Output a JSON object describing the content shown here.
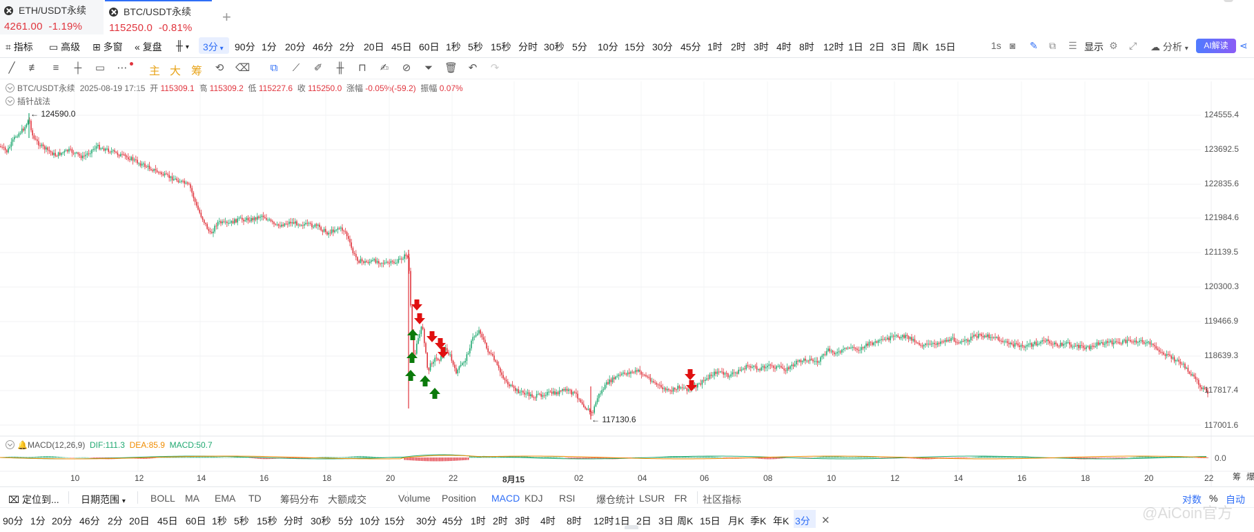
{
  "tabs": [
    {
      "name": "ETH/USDT永续",
      "price": "4261.00",
      "change": "-1.19%"
    },
    {
      "name": "BTC/USDT永续",
      "price": "115250.0",
      "change": "-0.81%"
    }
  ],
  "toolbar": {
    "indicators": "指标",
    "advanced": "高级",
    "multi": "多窗",
    "replay": "复盘",
    "current_interval": "3分",
    "intervals": [
      "90分",
      "1分",
      "20分",
      "46分",
      "2分",
      "20日",
      "45日",
      "60日",
      "1秒",
      "5秒",
      "15秒",
      "分时",
      "30秒",
      "5分",
      "10分",
      "15分",
      "30分",
      "45分",
      "1时",
      "2时",
      "3时",
      "4时",
      "8时",
      "12时",
      "1日",
      "2日",
      "3日",
      "周K",
      "15日"
    ],
    "refresh": "1s",
    "display": "显示",
    "analysis": "分析",
    "ai": "AI解读"
  },
  "drawbar": {
    "main": "主",
    "big": "大",
    "chip": "筹"
  },
  "info": {
    "symbol": "BTC/USDT永续",
    "datetime": "2025-08-19 17:15",
    "open_label": "开",
    "open": "115309.1",
    "high_label": "高",
    "high": "115309.2",
    "low_label": "低",
    "low": "115227.6",
    "close_label": "收",
    "close": "115250.0",
    "chg_label": "涨幅",
    "chg": "-0.05%(-59.2)",
    "amp_label": "振幅",
    "amp": "0.07%",
    "strategy": "插针战法"
  },
  "chart_data": {
    "type": "candlestick",
    "y_axis": [
      "124555.4",
      "123692.5",
      "122835.6",
      "121984.6",
      "121139.5",
      "120300.3",
      "119466.9",
      "118639.3",
      "117817.4",
      "117001.6"
    ],
    "x_axis": [
      "10",
      "12",
      "14",
      "16",
      "18",
      "20",
      "22",
      "8月15",
      "02",
      "04",
      "06",
      "08",
      "10",
      "12",
      "14",
      "16",
      "18",
      "20",
      "22"
    ],
    "high_marker": "← 124590.0",
    "low_marker": "← 117130.6",
    "macd": {
      "title": "MACD(12,26,9)",
      "dif": "DIF:111.3",
      "dea": "DEA:85.9",
      "macd": "MACD:50.7",
      "zero": "0.0"
    },
    "colors": {
      "up": "#1fa870",
      "down": "#e0343d",
      "buy_arrow": "#0b7a0b",
      "sell_arrow": "#e01010"
    }
  },
  "indicator_bar": {
    "locate": "定位到...",
    "range": "日期范围",
    "items": [
      "BOLL",
      "MA",
      "EMA",
      "TD",
      "筹码分布",
      "大额成交",
      "Volume",
      "Position",
      "MACD",
      "KDJ",
      "RSI",
      "爆仓统计",
      "LSUR",
      "FR",
      "社区指标"
    ],
    "active": "MACD",
    "right": [
      "对数",
      "%",
      "自动"
    ]
  },
  "timeframe_bar": {
    "items": [
      "90分",
      "1分",
      "20分",
      "46分",
      "2分",
      "20日",
      "45日",
      "60日",
      "1秒",
      "5秒",
      "15秒",
      "分时",
      "30秒",
      "5分",
      "10分",
      "15分",
      "30分",
      "45分",
      "1时",
      "2时",
      "3时",
      "4时",
      "8时",
      "12时",
      "1日",
      "2日",
      "3日",
      "周K",
      "15日",
      "月K",
      "季K",
      "年K",
      "3分"
    ],
    "active": "3分"
  },
  "side_labels": [
    "筹",
    "爆"
  ],
  "watermark": "@AiCoin官方"
}
